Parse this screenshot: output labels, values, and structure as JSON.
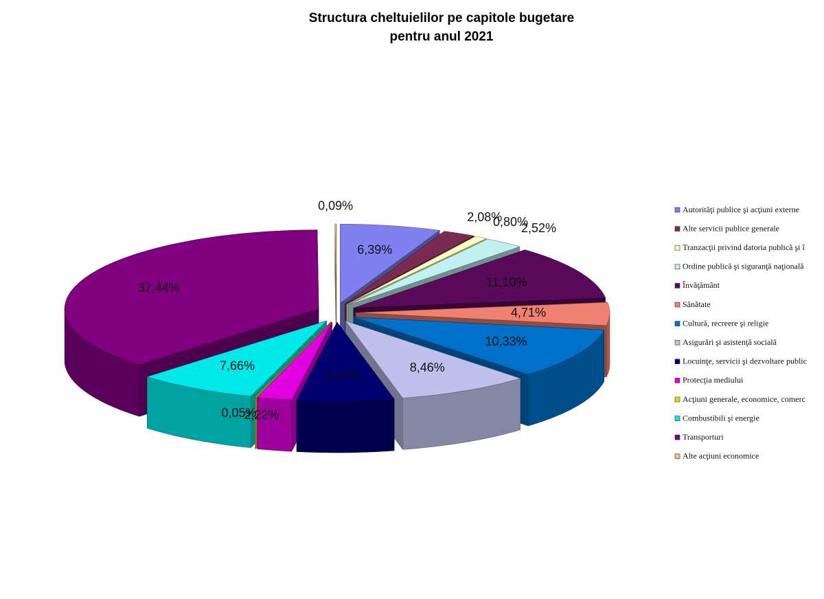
{
  "chart_data": {
    "type": "pie3d",
    "title": [
      "Structura cheltuielilor pe capitole bugetare",
      "pentru anul 2021"
    ],
    "categories": [
      "Autorităţi publice şi acţiuni externe",
      "Alte servicii publice generale",
      "Tranzacţii privind datoria publică şi î",
      "Ordine publică şi siguranţă naţională",
      "Învăţământ",
      "Sănătate",
      "Cultură, recreere şi religie",
      "Asigurări şi asistenţă socială",
      "Locuinţe, servicii şi dezvoltare public",
      "Protecţia mediului",
      "Acţiuni generale, economice, comerc",
      "Combustibili şi energie",
      "Transporturi",
      "Alte acţiuni economice"
    ],
    "values": [
      6.39,
      2.08,
      0.8,
      2.52,
      11.1,
      4.71,
      10.33,
      8.46,
      6.15,
      2.22,
      0.05,
      7.66,
      37.44,
      0.09
    ],
    "value_labels": [
      "6,39%",
      "2,08%",
      "0,80%",
      "2,52%",
      "11,10%",
      "4,71%",
      "10,33%",
      "8,46%",
      "6,15%",
      "2,22%",
      "0,05%",
      "7,66%",
      "37,44%",
      "0,09%"
    ],
    "colors": [
      "#8080f0",
      "#7b2a50",
      "#ffffc0",
      "#c0f0f0",
      "#5a0a5a",
      "#f08070",
      "#0070c8",
      "#c0c0ec",
      "#000070",
      "#e000e0",
      "#e0e000",
      "#00e8e8",
      "#800080",
      "#f0c090"
    ],
    "legend": "right"
  }
}
